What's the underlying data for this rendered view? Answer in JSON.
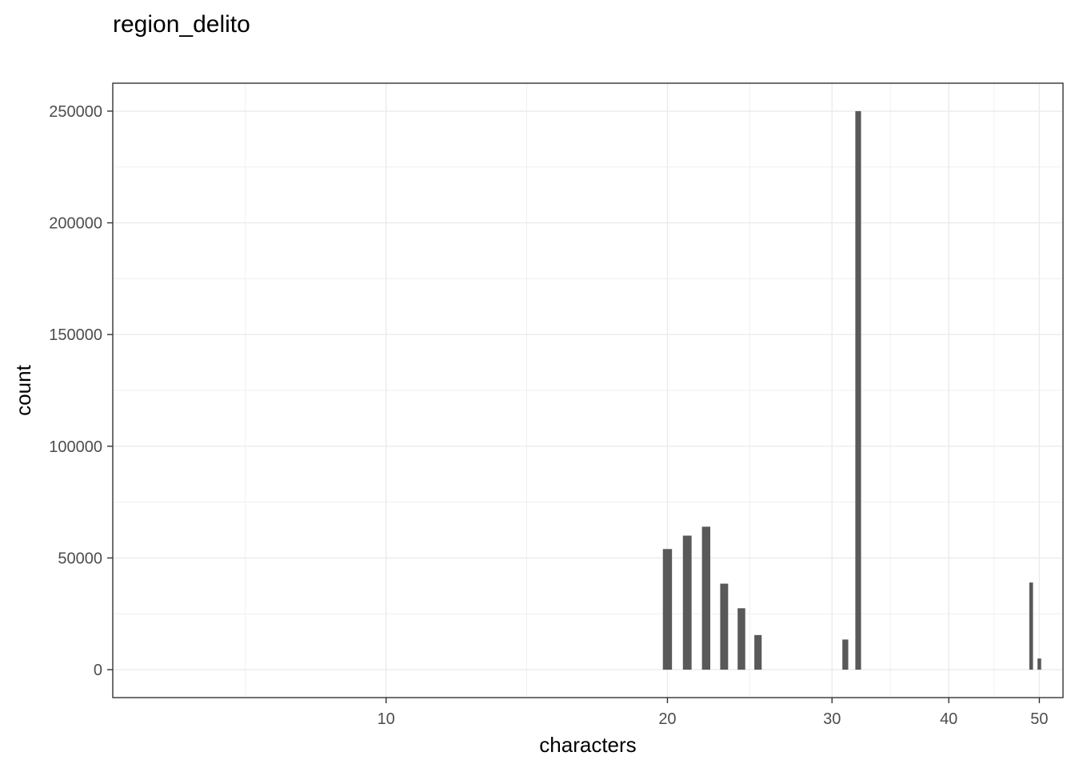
{
  "chart_data": {
    "type": "bar",
    "title": "region_delito",
    "xlabel": "characters",
    "ylabel": "count",
    "x_scale": "log10",
    "xlim": [
      5.1,
      53
    ],
    "ylim": [
      -12500,
      262500
    ],
    "x_ticks": [
      10,
      20,
      30,
      40,
      50
    ],
    "x_tick_labels": [
      "10",
      "20",
      "30",
      "40",
      "50"
    ],
    "y_ticks": [
      0,
      50000,
      100000,
      150000,
      200000,
      250000
    ],
    "y_tick_labels": [
      "0",
      "50000",
      "100000",
      "150000",
      "200000",
      "250000"
    ],
    "bar_color": "#595959",
    "grid": true,
    "x": [
      20,
      21,
      22,
      23,
      24,
      25,
      31,
      32,
      49,
      50
    ],
    "values": [
      54000,
      60000,
      64000,
      38500,
      27500,
      15500,
      13500,
      250000,
      39000,
      5000
    ]
  }
}
